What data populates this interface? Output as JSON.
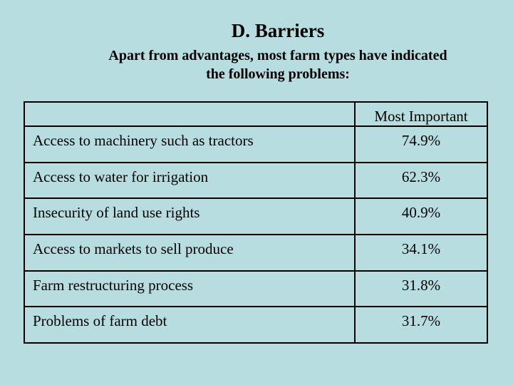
{
  "slide": {
    "title": "D. Barriers",
    "subtitle": "Apart from advantages, most farm types have indicated the following problems:"
  },
  "table": {
    "header": [
      "",
      "Most Important"
    ],
    "rows": [
      {
        "label": "Access to machinery such as tractors",
        "value": "74.9%"
      },
      {
        "label": "Access to water for irrigation",
        "value": "62.3%"
      },
      {
        "label": "Insecurity of land use rights",
        "value": "40.9%"
      },
      {
        "label": "Access to markets to sell produce",
        "value": "34.1%"
      },
      {
        "label": "Farm restructuring process",
        "value": "31.8%"
      },
      {
        "label": "Problems of farm debt",
        "value": "31.7%"
      }
    ]
  },
  "colors": {
    "background": "#b8dde1",
    "text": "#000000",
    "table_border": "#000000"
  }
}
